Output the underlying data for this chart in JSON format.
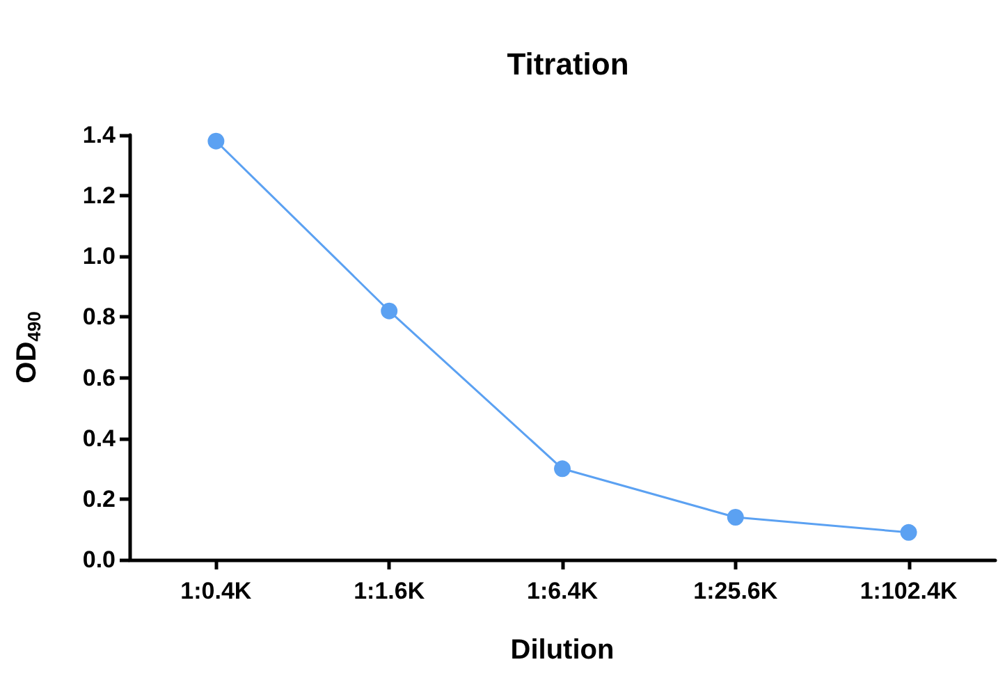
{
  "chart_data": {
    "type": "line",
    "title": "Titration",
    "xlabel": "Dilution",
    "ylabel": "OD$_{490}$",
    "categories": [
      "1:0.4K",
      "1:1.6K",
      "1:6.4K",
      "1:25.6K",
      "1:102.4K"
    ],
    "series": [
      {
        "color": "#5ba1f2",
        "values": [
          1.38,
          0.82,
          0.3,
          0.14,
          0.09
        ]
      }
    ],
    "ylim": [
      0,
      1.4
    ],
    "yticks": [
      {
        "value": 0,
        "label": "0.0"
      },
      0.2,
      0.4,
      0.6,
      0.8,
      {
        "value": 1,
        "label": "1.0"
      },
      1.2,
      1.4
    ],
    "grid": false,
    "marker": "circle",
    "line_style": "solid"
  }
}
